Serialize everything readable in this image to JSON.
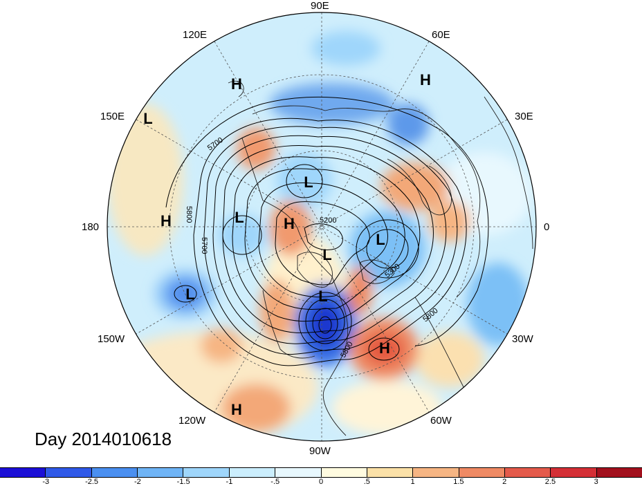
{
  "map": {
    "title": "Day 2014010618",
    "longitude_labels": [
      "90E",
      "60E",
      "30E",
      "0",
      "30W",
      "60W",
      "90W",
      "120W",
      "150W",
      "180",
      "150E",
      "120E"
    ],
    "pressure_centers": [
      "H",
      "H",
      "L",
      "L",
      "L",
      "H",
      "L",
      "H",
      "L",
      "L",
      "L",
      "H",
      "H"
    ],
    "contour_labels": [
      "5700",
      "5800",
      "5700",
      "5200",
      "5300",
      "5800",
      "5800"
    ]
  },
  "colorbar": {
    "ticks": [
      "-3",
      "-2.5",
      "-2",
      "-1.5",
      "-1",
      "-.5",
      "0",
      ".5",
      "1",
      "1.5",
      "2",
      "2.5",
      "3"
    ],
    "colors": [
      "#1b0fd6",
      "#2f59e8",
      "#4a8ff0",
      "#6fb4f6",
      "#9fd6fb",
      "#cbeefd",
      "#e8f8fe",
      "#fffbe0",
      "#fbe1a8",
      "#f6b583",
      "#ef8a64",
      "#e45a4b",
      "#d42f36",
      "#a2101d"
    ]
  }
}
